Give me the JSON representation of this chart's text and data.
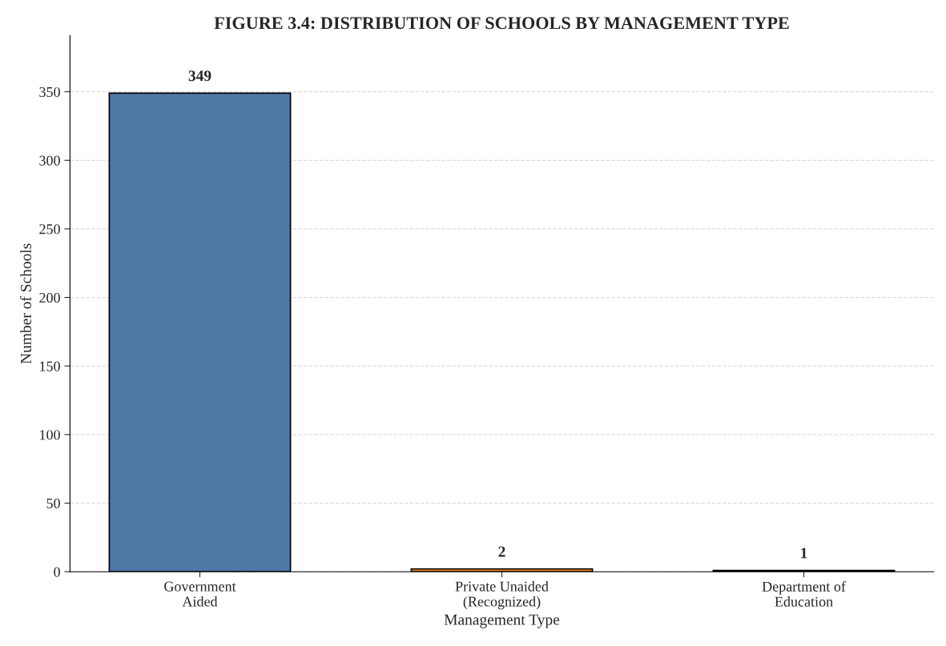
{
  "chart_data": {
    "type": "bar",
    "title": "FIGURE 3.4: DISTRIBUTION OF SCHOOLS BY MANAGEMENT TYPE",
    "xlabel": "Management Type",
    "ylabel": "Number of Schools",
    "categories": [
      "Government\nAided",
      "Private Unaided\n(Recognized)",
      "Department of\nEducation"
    ],
    "values": [
      349,
      2,
      1
    ],
    "colors": [
      "#4e79a7",
      "#f28e2b",
      "#e15759"
    ],
    "ylim": [
      0,
      391
    ],
    "yticks": [
      0,
      50,
      100,
      150,
      200,
      250,
      300,
      350
    ],
    "grid": "y",
    "data_labels": true
  }
}
